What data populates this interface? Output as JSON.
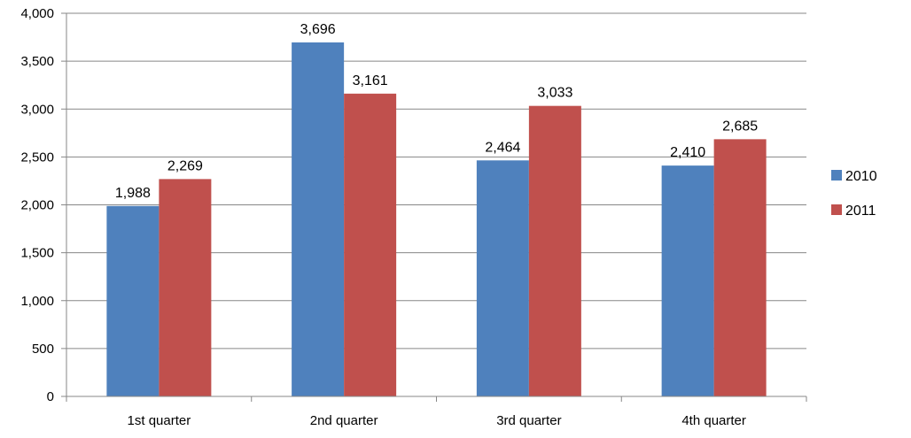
{
  "chart_data": {
    "type": "bar",
    "categories": [
      "1st quarter",
      "2nd quarter",
      "3rd quarter",
      "4th quarter"
    ],
    "series": [
      {
        "name": "2010",
        "values": [
          1988,
          3696,
          2464,
          2410
        ],
        "color": "#4F81BD"
      },
      {
        "name": "2011",
        "values": [
          2269,
          3161,
          3033,
          2685
        ],
        "color": "#C0504D"
      }
    ],
    "data_labels": [
      [
        "1,988",
        "3,696",
        "2,464",
        "2,410"
      ],
      [
        "2,269",
        "3,161",
        "3,033",
        "2,685"
      ]
    ],
    "y_ticks": [
      0,
      500,
      1000,
      1500,
      2000,
      2500,
      3000,
      3500,
      4000
    ],
    "y_tick_labels": [
      "0",
      "500",
      "1,000",
      "1,500",
      "2,000",
      "2,500",
      "3,000",
      "3,500",
      "4,000"
    ],
    "ylim": [
      0,
      4000
    ],
    "grid": true,
    "legend_position": "right",
    "title": "",
    "xlabel": "",
    "ylabel": ""
  }
}
